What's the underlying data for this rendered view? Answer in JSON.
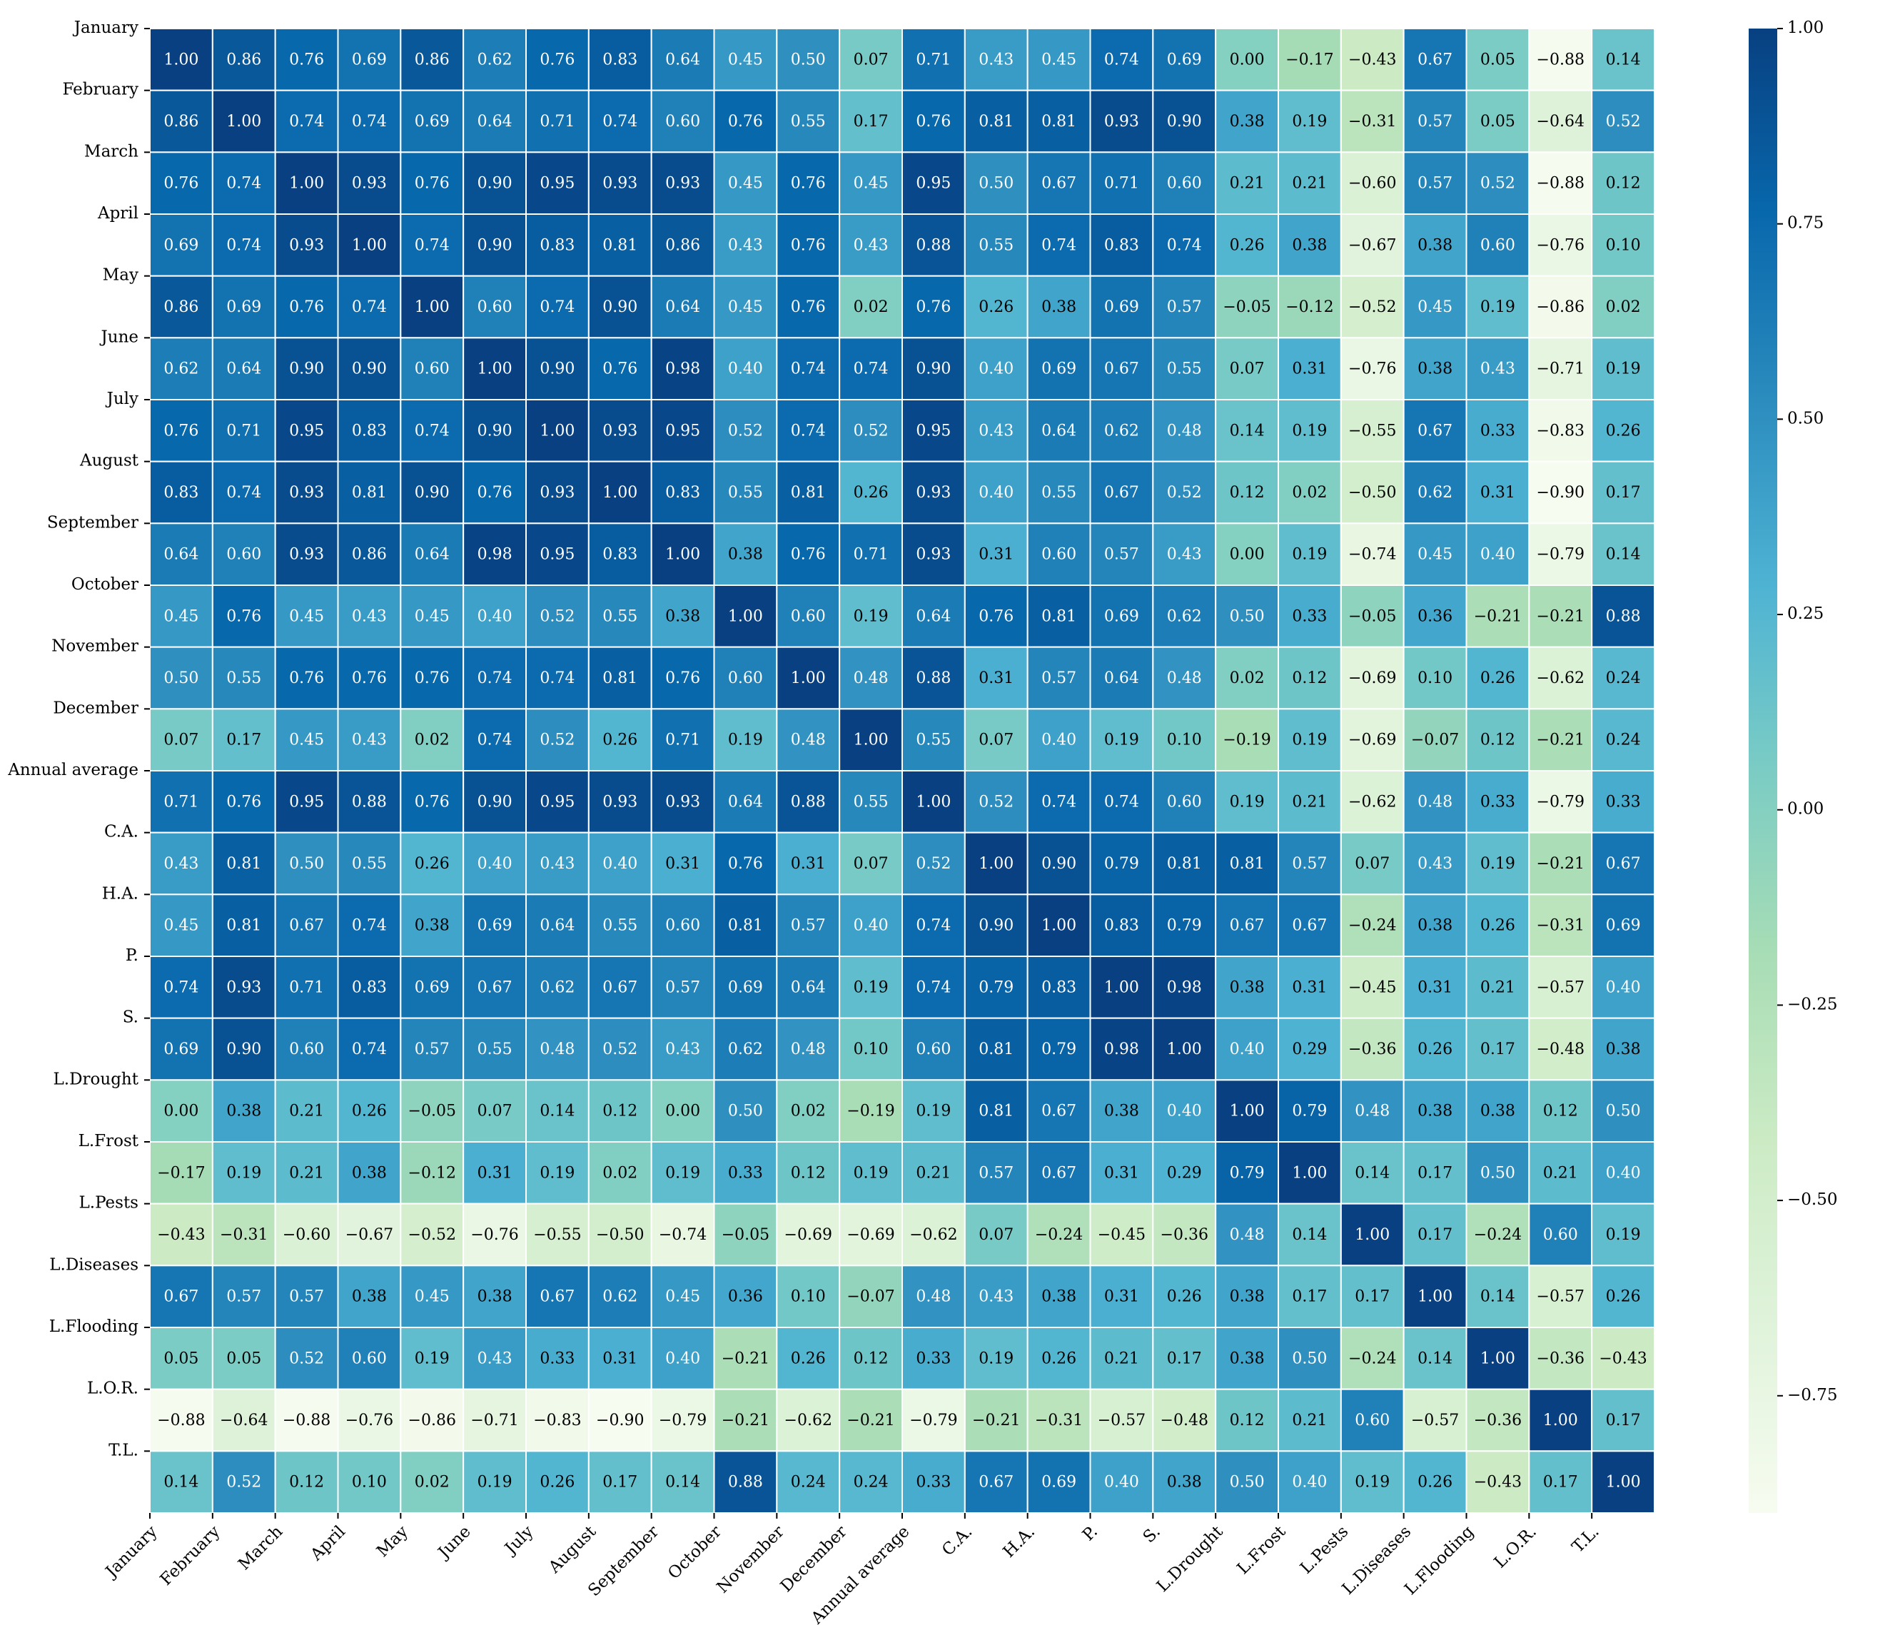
{
  "chart_data": {
    "type": "heatmap",
    "title": "",
    "xlabel": "",
    "ylabel": "",
    "labels": [
      "January",
      "February",
      "March",
      "April",
      "May",
      "June",
      "July",
      "August",
      "September",
      "October",
      "November",
      "December",
      "Annual average",
      "C.A.",
      "H.A.",
      "P.",
      "S.",
      "L.Drought",
      "L.Frost",
      "L.Pests",
      "L.Diseases",
      "L.Flooding",
      "L.O.R.",
      "T.L."
    ],
    "values": [
      [
        1.0,
        0.86,
        0.76,
        0.69,
        0.86,
        0.62,
        0.76,
        0.83,
        0.64,
        0.45,
        0.5,
        0.07,
        0.71,
        0.43,
        0.45,
        0.74,
        0.69,
        0.0,
        -0.17,
        -0.43,
        0.67,
        0.05,
        -0.88,
        0.14
      ],
      [
        0.86,
        1.0,
        0.74,
        0.74,
        0.69,
        0.64,
        0.71,
        0.74,
        0.6,
        0.76,
        0.55,
        0.17,
        0.76,
        0.81,
        0.81,
        0.93,
        0.9,
        0.38,
        0.19,
        -0.31,
        0.57,
        0.05,
        -0.64,
        0.52
      ],
      [
        0.76,
        0.74,
        1.0,
        0.93,
        0.76,
        0.9,
        0.95,
        0.93,
        0.93,
        0.45,
        0.76,
        0.45,
        0.95,
        0.5,
        0.67,
        0.71,
        0.6,
        0.21,
        0.21,
        -0.6,
        0.57,
        0.52,
        -0.88,
        0.12
      ],
      [
        0.69,
        0.74,
        0.93,
        1.0,
        0.74,
        0.9,
        0.83,
        0.81,
        0.86,
        0.43,
        0.76,
        0.43,
        0.88,
        0.55,
        0.74,
        0.83,
        0.74,
        0.26,
        0.38,
        -0.67,
        0.38,
        0.6,
        -0.76,
        0.1
      ],
      [
        0.86,
        0.69,
        0.76,
        0.74,
        1.0,
        0.6,
        0.74,
        0.9,
        0.64,
        0.45,
        0.76,
        0.02,
        0.76,
        0.26,
        0.38,
        0.69,
        0.57,
        -0.05,
        -0.12,
        -0.52,
        0.45,
        0.19,
        -0.86,
        0.02
      ],
      [
        0.62,
        0.64,
        0.9,
        0.9,
        0.6,
        1.0,
        0.9,
        0.76,
        0.98,
        0.4,
        0.74,
        0.74,
        0.9,
        0.4,
        0.69,
        0.67,
        0.55,
        0.07,
        0.31,
        -0.76,
        0.38,
        0.43,
        -0.71,
        0.19
      ],
      [
        0.76,
        0.71,
        0.95,
        0.83,
        0.74,
        0.9,
        1.0,
        0.93,
        0.95,
        0.52,
        0.74,
        0.52,
        0.95,
        0.43,
        0.64,
        0.62,
        0.48,
        0.14,
        0.19,
        -0.55,
        0.67,
        0.33,
        -0.83,
        0.26
      ],
      [
        0.83,
        0.74,
        0.93,
        0.81,
        0.9,
        0.76,
        0.93,
        1.0,
        0.83,
        0.55,
        0.81,
        0.26,
        0.93,
        0.4,
        0.55,
        0.67,
        0.52,
        0.12,
        0.02,
        -0.5,
        0.62,
        0.31,
        -0.9,
        0.17
      ],
      [
        0.64,
        0.6,
        0.93,
        0.86,
        0.64,
        0.98,
        0.95,
        0.83,
        1.0,
        0.38,
        0.76,
        0.71,
        0.93,
        0.31,
        0.6,
        0.57,
        0.43,
        0.0,
        0.19,
        -0.74,
        0.45,
        0.4,
        -0.79,
        0.14
      ],
      [
        0.45,
        0.76,
        0.45,
        0.43,
        0.45,
        0.4,
        0.52,
        0.55,
        0.38,
        1.0,
        0.6,
        0.19,
        0.64,
        0.76,
        0.81,
        0.69,
        0.62,
        0.5,
        0.33,
        -0.05,
        0.36,
        -0.21,
        -0.21,
        0.88
      ],
      [
        0.5,
        0.55,
        0.76,
        0.76,
        0.76,
        0.74,
        0.74,
        0.81,
        0.76,
        0.6,
        1.0,
        0.48,
        0.88,
        0.31,
        0.57,
        0.64,
        0.48,
        0.02,
        0.12,
        -0.69,
        0.1,
        0.26,
        -0.62,
        0.24
      ],
      [
        0.07,
        0.17,
        0.45,
        0.43,
        0.02,
        0.74,
        0.52,
        0.26,
        0.71,
        0.19,
        0.48,
        1.0,
        0.55,
        0.07,
        0.4,
        0.19,
        0.1,
        -0.19,
        0.19,
        -0.69,
        -0.07,
        0.12,
        -0.21,
        0.24
      ],
      [
        0.71,
        0.76,
        0.95,
        0.88,
        0.76,
        0.9,
        0.95,
        0.93,
        0.93,
        0.64,
        0.88,
        0.55,
        1.0,
        0.52,
        0.74,
        0.74,
        0.6,
        0.19,
        0.21,
        -0.62,
        0.48,
        0.33,
        -0.79,
        0.33
      ],
      [
        0.43,
        0.81,
        0.5,
        0.55,
        0.26,
        0.4,
        0.43,
        0.4,
        0.31,
        0.76,
        0.31,
        0.07,
        0.52,
        1.0,
        0.9,
        0.79,
        0.81,
        0.81,
        0.57,
        0.07,
        0.43,
        0.19,
        -0.21,
        0.67
      ],
      [
        0.45,
        0.81,
        0.67,
        0.74,
        0.38,
        0.69,
        0.64,
        0.55,
        0.6,
        0.81,
        0.57,
        0.4,
        0.74,
        0.9,
        1.0,
        0.83,
        0.79,
        0.67,
        0.67,
        -0.24,
        0.38,
        0.26,
        -0.31,
        0.69
      ],
      [
        0.74,
        0.93,
        0.71,
        0.83,
        0.69,
        0.67,
        0.62,
        0.67,
        0.57,
        0.69,
        0.64,
        0.19,
        0.74,
        0.79,
        0.83,
        1.0,
        0.98,
        0.38,
        0.31,
        -0.45,
        0.31,
        0.21,
        -0.57,
        0.4
      ],
      [
        0.69,
        0.9,
        0.6,
        0.74,
        0.57,
        0.55,
        0.48,
        0.52,
        0.43,
        0.62,
        0.48,
        0.1,
        0.6,
        0.81,
        0.79,
        0.98,
        1.0,
        0.4,
        0.29,
        -0.36,
        0.26,
        0.17,
        -0.48,
        0.38
      ],
      [
        0.0,
        0.38,
        0.21,
        0.26,
        -0.05,
        0.07,
        0.14,
        0.12,
        0.0,
        0.5,
        0.02,
        -0.19,
        0.19,
        0.81,
        0.67,
        0.38,
        0.4,
        1.0,
        0.79,
        0.48,
        0.38,
        0.38,
        0.12,
        0.5
      ],
      [
        -0.17,
        0.19,
        0.21,
        0.38,
        -0.12,
        0.31,
        0.19,
        0.02,
        0.19,
        0.33,
        0.12,
        0.19,
        0.21,
        0.57,
        0.67,
        0.31,
        0.29,
        0.79,
        1.0,
        0.14,
        0.17,
        0.5,
        0.21,
        0.4
      ],
      [
        -0.43,
        -0.31,
        -0.6,
        -0.67,
        -0.52,
        -0.76,
        -0.55,
        -0.5,
        -0.74,
        -0.05,
        -0.69,
        -0.69,
        -0.62,
        0.07,
        -0.24,
        -0.45,
        -0.36,
        0.48,
        0.14,
        1.0,
        0.17,
        -0.24,
        0.6,
        0.19
      ],
      [
        0.67,
        0.57,
        0.57,
        0.38,
        0.45,
        0.38,
        0.67,
        0.62,
        0.45,
        0.36,
        0.1,
        -0.07,
        0.48,
        0.43,
        0.38,
        0.31,
        0.26,
        0.38,
        0.17,
        0.17,
        1.0,
        0.14,
        -0.57,
        0.26
      ],
      [
        0.05,
        0.05,
        0.52,
        0.6,
        0.19,
        0.43,
        0.33,
        0.31,
        0.4,
        -0.21,
        0.26,
        0.12,
        0.33,
        0.19,
        0.26,
        0.21,
        0.17,
        0.38,
        0.5,
        -0.24,
        0.14,
        1.0,
        -0.36,
        -0.43
      ],
      [
        -0.88,
        -0.64,
        -0.88,
        -0.76,
        -0.86,
        -0.71,
        -0.83,
        -0.9,
        -0.79,
        -0.21,
        -0.62,
        -0.21,
        -0.79,
        -0.21,
        -0.31,
        -0.57,
        -0.48,
        0.12,
        0.21,
        0.6,
        -0.57,
        -0.36,
        1.0,
        0.17
      ],
      [
        0.14,
        0.52,
        0.12,
        0.1,
        0.02,
        0.19,
        0.26,
        0.17,
        0.14,
        0.88,
        0.24,
        0.24,
        0.33,
        0.67,
        0.69,
        0.4,
        0.38,
        0.5,
        0.4,
        0.19,
        0.26,
        -0.43,
        0.17,
        1.0
      ]
    ],
    "value_format": "2 decimals, minus sign as −",
    "colormap": "GnBu-like (light green at minimum, dark blue at maximum)",
    "colormap_stops": [
      "#f7fcf0",
      "#e0f3db",
      "#ccebc5",
      "#a8ddb5",
      "#7bccc4",
      "#4eb3d3",
      "#2b8cbe",
      "#0868ac",
      "#084081"
    ],
    "vmin": -0.9,
    "vmax": 1.0,
    "colorbar": {
      "ticks": [
        1.0,
        0.75,
        0.5,
        0.25,
        0.0,
        -0.25,
        -0.5,
        -0.75
      ],
      "tick_labels": [
        "1.00",
        "0.75",
        "0.50",
        "0.25",
        "0.00",
        "−0.25",
        "−0.50",
        "−0.75"
      ],
      "placement": "right"
    },
    "cell_border_color": "#ffffff",
    "text_color_light": "#ffffff",
    "text_color_dark": "#000000",
    "text_color_threshold": 0.4
  }
}
